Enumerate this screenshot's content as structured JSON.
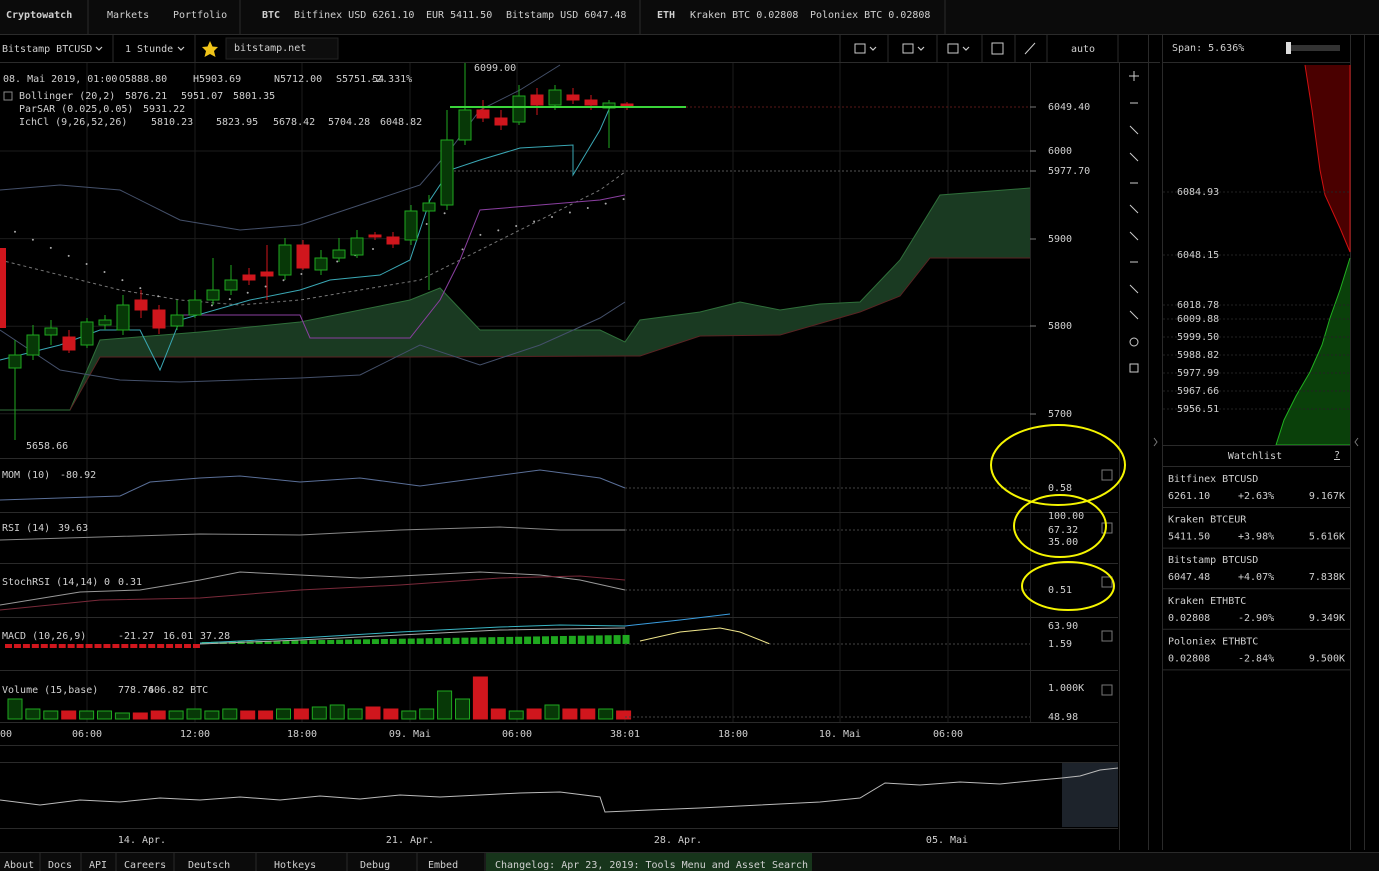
{
  "topbar": {
    "brand": "Cryptowatch",
    "nav": [
      "Markets",
      "Portfolio"
    ],
    "groups": [
      {
        "asset": "BTC",
        "quotes": [
          "Bitfinex USD 6261.10",
          "EUR 5411.50",
          "Bitstamp USD 6047.48"
        ]
      },
      {
        "asset": "ETH",
        "quotes": [
          "Kraken BTC 0.02808",
          "Poloniex BTC 0.02808"
        ]
      }
    ]
  },
  "toolbar": {
    "market": "Bitstamp BTCUSD",
    "interval": "1 Stunde",
    "exchange": "bitstamp.net",
    "scale": "auto"
  },
  "legend": {
    "time": "08. Mai 2019, 01:00",
    "ohlc": [
      "O5888.80",
      "H5903.69",
      "N5712.00",
      "S5751.54",
      "-2.331%"
    ],
    "indicators": [
      {
        "name": "Bollinger (20,2)",
        "values": [
          "5876.21",
          "5951.07",
          "5801.35"
        ]
      },
      {
        "name": "ParSAR (0.025,0.05)",
        "values": [
          "5931.22"
        ]
      },
      {
        "name": "IchCl (9,26,52,26)",
        "values": [
          "5810.23",
          "5823.95",
          "5678.42",
          "5704.28",
          "6048.82"
        ]
      }
    ]
  },
  "price_axis": [
    "6049.40",
    "6000",
    "5977.70",
    "5900",
    "5800",
    "5700"
  ],
  "chart_labels": {
    "high": "6099.00",
    "low": "5658.66"
  },
  "panes": [
    {
      "name": "MOM (10)",
      "values": [
        "-80.92"
      ],
      "axis": [
        "0.58"
      ]
    },
    {
      "name": "RSI (14)",
      "values": [
        "39.63"
      ],
      "axis": [
        "100.00",
        "67.32",
        "35.00"
      ]
    },
    {
      "name": "StochRSI (14,14)",
      "values": [
        "0",
        "0.31"
      ],
      "axis": [
        "0.51"
      ]
    },
    {
      "name": "MACD (10,26,9)",
      "values": [
        "-21.27",
        "16.01",
        "37.28"
      ],
      "axis": [
        "63.90",
        "1.59"
      ]
    },
    {
      "name": "Volume (15,base)",
      "values": [
        "778.76",
        "406.82 BTC"
      ],
      "axis": [
        "1.000K",
        "48.98"
      ]
    }
  ],
  "time_axis": [
    "00",
    "06:00",
    "12:00",
    "18:00",
    "09. Mai",
    "06:00",
    "38:01",
    "18:00",
    "10. Mai",
    "06:00"
  ],
  "overview_axis": [
    "14. Apr.",
    "21. Apr.",
    "28. Apr.",
    "05. Mai"
  ],
  "span": "Span: 5.636%",
  "order_book": [
    "6084.93",
    "6048.15",
    "6018.78",
    "6009.88",
    "5999.50",
    "5988.82",
    "5977.99",
    "5967.66",
    "5956.51"
  ],
  "watchlist": {
    "title": "Watchlist",
    "help": "?",
    "items": [
      {
        "market": "Bitfinex BTCUSD",
        "price": "6261.10",
        "change": "+2.63%",
        "volume": "9.167K"
      },
      {
        "market": "Kraken BTCEUR",
        "price": "5411.50",
        "change": "+3.98%",
        "volume": "5.616K"
      },
      {
        "market": "Bitstamp BTCUSD",
        "price": "6047.48",
        "change": "+4.07%",
        "volume": "7.838K"
      },
      {
        "market": "Kraken ETHBTC",
        "price": "0.02808",
        "change": "-2.90%",
        "volume": "9.349K"
      },
      {
        "market": "Poloniex ETHBTC",
        "price": "0.02808",
        "change": "-2.84%",
        "volume": "9.500K"
      }
    ]
  },
  "footer": {
    "links": [
      "About",
      "Docs",
      "API",
      "Careers",
      "Deutsch",
      "Hotkeys",
      "Debug",
      "Embed"
    ],
    "changelog": "Changelog: Apr 23, 2019: Tools Menu and Asset Search"
  }
}
